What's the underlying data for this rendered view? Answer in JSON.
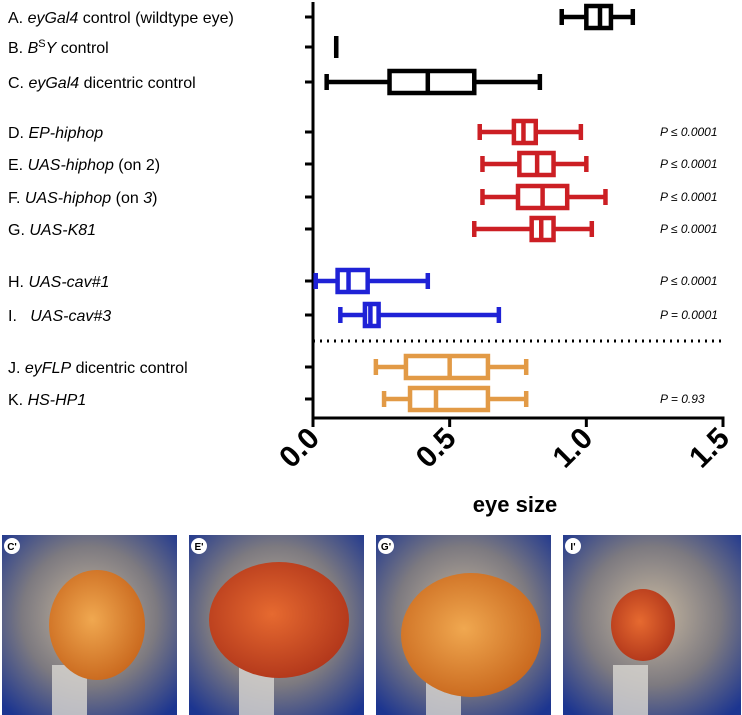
{
  "chart_data": {
    "type": "box",
    "xlabel": "eye size",
    "xlim": [
      0,
      1.5
    ],
    "xticks": [
      {
        "value": 0,
        "label": "0.0"
      },
      {
        "value": 0.5,
        "label": "0.5"
      },
      {
        "value": 1,
        "label": "1.0"
      },
      {
        "value": 1.5,
        "label": "1.5"
      }
    ],
    "boxes": [
      {
        "label": [
          {
            "text": "A. "
          },
          {
            "text": "eyGal4",
            "style": "italic"
          },
          {
            "text": " control (wildtype eye)"
          }
        ],
        "color": "#000000",
        "min": 0.91,
        "q1": 1.0,
        "median": 1.05,
        "q3": 1.09,
        "max": 1.17,
        "p_label": null
      },
      {
        "label": [
          {
            "text": "B. "
          },
          {
            "text": "B",
            "style": "italic"
          },
          {
            "text": "S",
            "style": "sup"
          },
          {
            "text": "Y",
            "style": "italic"
          },
          {
            "text": " control"
          }
        ],
        "color": "#000000",
        "min": 0.085,
        "q1": 0.085,
        "median": 0.085,
        "q3": 0.085,
        "max": 0.085,
        "p_label": null
      },
      {
        "label": [
          {
            "text": "C. "
          },
          {
            "text": "eyGal4",
            "style": "italic"
          },
          {
            "text": " dicentric control"
          }
        ],
        "color": "#000000",
        "min": 0.05,
        "q1": 0.28,
        "median": 0.42,
        "q3": 0.59,
        "max": 0.83,
        "p_label": null
      },
      {
        "label": [
          {
            "text": "D. "
          },
          {
            "text": "EP-hiphop",
            "style": "italic"
          }
        ],
        "color": "#cc1f24",
        "min": 0.61,
        "q1": 0.735,
        "median": 0.77,
        "q3": 0.815,
        "max": 0.98,
        "p_label": "P ≤ 0.0001"
      },
      {
        "label": [
          {
            "text": "E. "
          },
          {
            "text": "UAS-hiphop",
            "style": "italic"
          },
          {
            "text": " (on 2)"
          }
        ],
        "color": "#cc1f24",
        "min": 0.62,
        "q1": 0.755,
        "median": 0.82,
        "q3": 0.88,
        "max": 1.0,
        "p_label": "P ≤ 0.0001"
      },
      {
        "label": [
          {
            "text": "F. "
          },
          {
            "text": "UAS-hiphop",
            "style": "italic"
          },
          {
            "text": " (on "
          },
          {
            "text": "3",
            "style": "italic"
          },
          {
            "text": ")"
          }
        ],
        "color": "#cc1f24",
        "min": 0.62,
        "q1": 0.75,
        "median": 0.84,
        "q3": 0.93,
        "max": 1.07,
        "p_label": "P ≤ 0.0001"
      },
      {
        "label": [
          {
            "text": "G. "
          },
          {
            "text": "UAS-K81",
            "style": "italic"
          }
        ],
        "color": "#cc1f24",
        "min": 0.59,
        "q1": 0.8,
        "median": 0.835,
        "q3": 0.88,
        "max": 1.02,
        "p_label": "P ≤ 0.0001"
      },
      {
        "label": [
          {
            "text": "H. "
          },
          {
            "text": "UAS-cav#1",
            "style": "italic"
          }
        ],
        "color": "#1f22d6",
        "min": 0.01,
        "q1": 0.09,
        "median": 0.13,
        "q3": 0.2,
        "max": 0.42,
        "p_label": "P ≤ 0.0001"
      },
      {
        "label": [
          {
            "text": "I.   "
          },
          {
            "text": "UAS-cav#3",
            "style": "italic"
          }
        ],
        "color": "#1f22d6",
        "min": 0.1,
        "q1": 0.19,
        "median": 0.21,
        "q3": 0.24,
        "max": 0.68,
        "p_label": "P = 0.0001"
      },
      {
        "label": [
          {
            "text": "J. "
          },
          {
            "text": "eyFLP",
            "style": "italic"
          },
          {
            "text": " dicentric control"
          }
        ],
        "color": "#e29a46",
        "min": 0.23,
        "q1": 0.34,
        "median": 0.5,
        "q3": 0.64,
        "max": 0.78,
        "p_label": null
      },
      {
        "label": [
          {
            "text": "K. "
          },
          {
            "text": "HS-HP1",
            "style": "italic"
          }
        ],
        "color": "#e29a46",
        "min": 0.26,
        "q1": 0.355,
        "median": 0.45,
        "q3": 0.64,
        "max": 0.78,
        "p_label": "P = 0.93"
      }
    ]
  },
  "panels": [
    "C'",
    "E'",
    "G'",
    "I'"
  ]
}
